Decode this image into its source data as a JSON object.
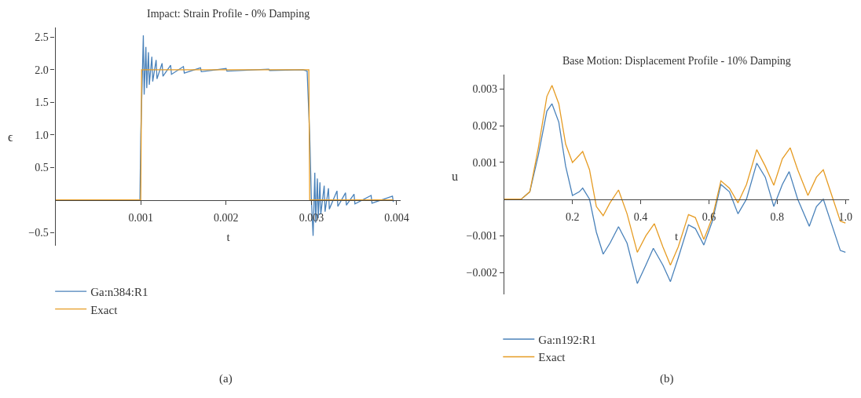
{
  "chart_data": [
    {
      "type": "line",
      "title": "Impact: Strain Profile - 0% Damping",
      "xlabel": "t",
      "ylabel": "ϵ",
      "xlim": [
        0,
        0.00405
      ],
      "ylim": [
        -0.7,
        2.65
      ],
      "xticks": [
        0.001,
        0.002,
        0.003,
        0.004
      ],
      "yticks": [
        {
          "value": -0.5,
          "label": "−0.5"
        },
        0.5,
        {
          "value": 1.0,
          "label": "1.0"
        },
        1.5,
        {
          "value": 2.0,
          "label": "2.0"
        },
        2.5
      ],
      "grid": false,
      "legend": "bottom",
      "marker": "none",
      "line_style": "solid",
      "annotations": [
        "(a)"
      ],
      "series": [
        {
          "name": "Ga:n384:R1",
          "color": "#4a82ba",
          "x": [
            0,
            0.00099,
            0.001,
            0.00102,
            0.00103,
            0.00104,
            0.00106,
            0.00107,
            0.00109,
            0.0011,
            0.00113,
            0.00114,
            0.00118,
            0.00119,
            0.00125,
            0.00126,
            0.00135,
            0.00136,
            0.0015,
            0.00151,
            0.0017,
            0.00171,
            0.002,
            0.00201,
            0.0025,
            0.00251,
            0.0029,
            0.00295,
            0.00298,
            0.003,
            0.00302,
            0.00304,
            0.00305,
            0.00307,
            0.00308,
            0.0031,
            0.00311,
            0.00315,
            0.00316,
            0.0032,
            0.00321,
            0.0033,
            0.00331,
            0.0034,
            0.00341,
            0.0035,
            0.00351,
            0.0037,
            0.00371,
            0.00395,
            0.00396
          ],
          "values": [
            0,
            0,
            1.0,
            2.0,
            2.53,
            1.62,
            2.35,
            1.72,
            2.27,
            1.77,
            2.2,
            1.82,
            2.15,
            1.86,
            2.1,
            1.9,
            2.07,
            1.93,
            2.05,
            1.95,
            2.03,
            1.97,
            2.02,
            1.98,
            2.01,
            1.99,
            2.0,
            1.98,
            1.0,
            0.0,
            -0.55,
            0.42,
            -0.35,
            0.33,
            -0.28,
            0.27,
            -0.22,
            0.22,
            -0.18,
            0.18,
            -0.14,
            0.14,
            -0.1,
            0.11,
            -0.08,
            0.09,
            -0.06,
            0.07,
            -0.05,
            0.06,
            -0.03
          ]
        },
        {
          "name": "Exact",
          "color": "#e69c24",
          "x": [
            0,
            0.001,
            0.00101,
            0.00297,
            0.00298,
            0.00396
          ],
          "values": [
            0,
            0,
            2.0,
            2.0,
            0,
            0
          ]
        }
      ]
    },
    {
      "type": "line",
      "title": "Base Motion: Displacement Profile - 10% Damping",
      "xlabel": "t",
      "ylabel": "u",
      "xlim": [
        0,
        1.01
      ],
      "ylim": [
        -0.0026,
        0.0034
      ],
      "xticks": [
        0.2,
        0.4,
        0.6,
        0.8,
        {
          "value": 1.0,
          "label": "1.0"
        }
      ],
      "yticks": [
        {
          "value": -0.002,
          "label": "−0.002"
        },
        {
          "value": -0.001,
          "label": "−0.001"
        },
        0.001,
        0.002,
        0.003
      ],
      "grid": false,
      "legend": "bottom",
      "marker": "none",
      "line_style": "solid",
      "annotations": [
        "(b)"
      ],
      "series": [
        {
          "name": "Ga:n192:R1",
          "color": "#4a82ba",
          "x": [
            0,
            0.05,
            0.075,
            0.1,
            0.125,
            0.14,
            0.16,
            0.18,
            0.2,
            0.22,
            0.23,
            0.25,
            0.27,
            0.29,
            0.31,
            0.335,
            0.36,
            0.39,
            0.415,
            0.437,
            0.465,
            0.487,
            0.51,
            0.54,
            0.56,
            0.585,
            0.61,
            0.635,
            0.66,
            0.685,
            0.71,
            0.74,
            0.765,
            0.79,
            0.815,
            0.835,
            0.86,
            0.894,
            0.915,
            0.935,
            0.96,
            0.985,
            1.0
          ],
          "values": [
            0,
            0,
            0.0002,
            0.0012,
            0.0024,
            0.0026,
            0.0021,
            0.0009,
            0.0001,
            0.0002,
            0.0003,
            0.0,
            -0.0009,
            -0.0015,
            -0.0012,
            -0.00075,
            -0.0012,
            -0.0023,
            -0.0018,
            -0.00134,
            -0.0018,
            -0.00225,
            -0.0016,
            -0.0007,
            -0.0008,
            -0.00125,
            -0.0006,
            0.0004,
            0.0002,
            -0.0004,
            0.0,
            0.00098,
            0.0006,
            -0.0002,
            0.0004,
            0.00075,
            0.0,
            -0.00074,
            -0.0002,
            0.0,
            -0.0007,
            -0.0014,
            -0.00145
          ]
        },
        {
          "name": "Exact",
          "color": "#e69c24",
          "x": [
            0,
            0.05,
            0.075,
            0.1,
            0.125,
            0.14,
            0.16,
            0.18,
            0.2,
            0.23,
            0.25,
            0.27,
            0.29,
            0.31,
            0.335,
            0.36,
            0.39,
            0.415,
            0.44,
            0.465,
            0.487,
            0.51,
            0.54,
            0.56,
            0.585,
            0.61,
            0.635,
            0.66,
            0.685,
            0.71,
            0.74,
            0.765,
            0.79,
            0.815,
            0.838,
            0.86,
            0.89,
            0.915,
            0.935,
            0.96,
            0.985,
            1.0
          ],
          "values": [
            0,
            0,
            0.0002,
            0.0014,
            0.0028,
            0.0031,
            0.0026,
            0.0015,
            0.001,
            0.0013,
            0.0008,
            -0.0002,
            -0.00045,
            -0.0001,
            0.00025,
            -0.0004,
            -0.00145,
            -0.001,
            -0.00067,
            -0.0013,
            -0.0018,
            -0.0013,
            -0.00042,
            -0.0005,
            -0.0011,
            -0.0005,
            0.0005,
            0.0003,
            -0.0001,
            0.0004,
            0.00135,
            0.0009,
            0.00038,
            0.0011,
            0.0014,
            0.0008,
            0.0001,
            0.0006,
            0.0008,
            0.0001,
            -0.0006,
            -0.00065
          ]
        }
      ]
    }
  ]
}
